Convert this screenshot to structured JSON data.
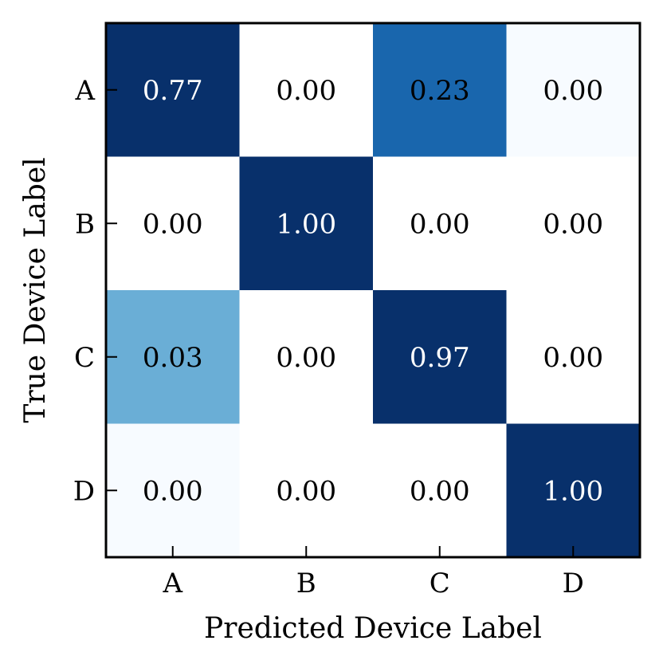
{
  "chart_data": {
    "type": "heatmap",
    "title": "",
    "xlabel": "Predicted Device Label",
    "ylabel": "True Device Label",
    "x_categories": [
      "A",
      "B",
      "C",
      "D"
    ],
    "y_categories": [
      "A",
      "B",
      "C",
      "D"
    ],
    "values": [
      [
        0.77,
        0.0,
        0.23,
        0.0
      ],
      [
        0.0,
        1.0,
        0.0,
        0.0
      ],
      [
        0.03,
        0.0,
        0.97,
        0.0
      ],
      [
        0.0,
        0.0,
        0.0,
        1.0
      ]
    ],
    "cell_labels": [
      [
        "0.77",
        "0.00",
        "0.23",
        "0.00"
      ],
      [
        "0.00",
        "1.00",
        "0.00",
        "0.00"
      ],
      [
        "0.03",
        "0.00",
        "0.97",
        "0.00"
      ],
      [
        "0.00",
        "0.00",
        "0.00",
        "1.00"
      ]
    ],
    "cell_colors": [
      [
        "#08306b",
        "#ffffff",
        "#1966ad",
        "#f7fbff"
      ],
      [
        "#ffffff",
        "#08306b",
        "#ffffff",
        "#ffffff"
      ],
      [
        "#6aaed6",
        "#ffffff",
        "#08306b",
        "#ffffff"
      ],
      [
        "#f7fbff",
        "#ffffff",
        "#ffffff",
        "#08306b"
      ]
    ],
    "colormap": "Blues",
    "legend": "none",
    "grid": false
  }
}
